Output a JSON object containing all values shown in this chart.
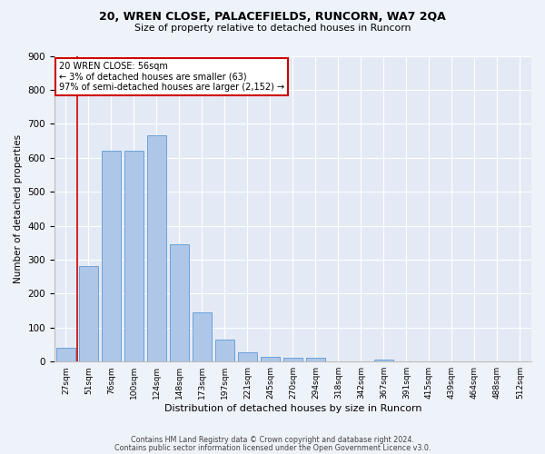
{
  "title_line1": "20, WREN CLOSE, PALACEFIELDS, RUNCORN, WA7 2QA",
  "title_line2": "Size of property relative to detached houses in Runcorn",
  "xlabel": "Distribution of detached houses by size in Runcorn",
  "ylabel": "Number of detached properties",
  "bar_color": "#aec6e8",
  "bar_edge_color": "#5b9bd5",
  "annotation_box_color": "#ffffff",
  "annotation_box_edge": "#cc0000",
  "vline_color": "#cc0000",
  "categories": [
    "27sqm",
    "51sqm",
    "76sqm",
    "100sqm",
    "124sqm",
    "148sqm",
    "173sqm",
    "197sqm",
    "221sqm",
    "245sqm",
    "270sqm",
    "294sqm",
    "318sqm",
    "342sqm",
    "367sqm",
    "391sqm",
    "415sqm",
    "439sqm",
    "464sqm",
    "488sqm",
    "512sqm"
  ],
  "values": [
    40,
    280,
    620,
    620,
    665,
    345,
    145,
    65,
    28,
    13,
    10,
    10,
    0,
    0,
    7,
    0,
    0,
    0,
    0,
    0,
    0
  ],
  "annotation_text": "20 WREN CLOSE: 56sqm\n← 3% of detached houses are smaller (63)\n97% of semi-detached houses are larger (2,152) →",
  "ylim": [
    0,
    900
  ],
  "yticks": [
    0,
    100,
    200,
    300,
    400,
    500,
    600,
    700,
    800,
    900
  ],
  "footnote1": "Contains HM Land Registry data © Crown copyright and database right 2024.",
  "footnote2": "Contains public sector information licensed under the Open Government Licence v3.0.",
  "background_color": "#eef2f9",
  "plot_bg_color": "#e4eaf5"
}
